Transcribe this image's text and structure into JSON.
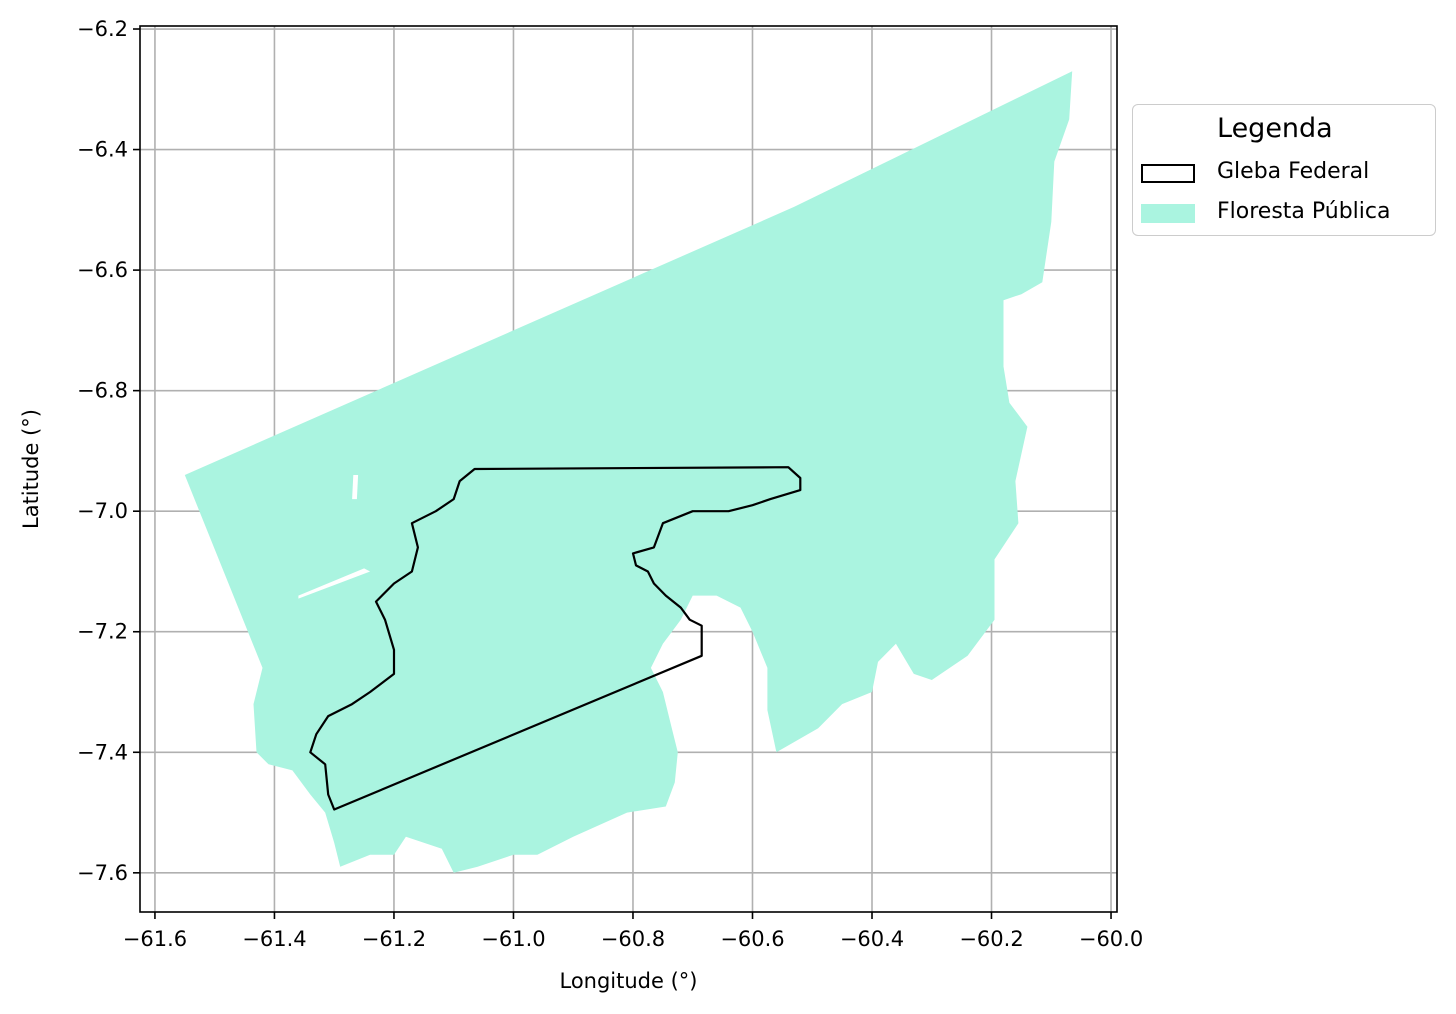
{
  "chart_data": {
    "type": "map",
    "xlabel": "Longitude (°)",
    "ylabel": "Latitude (°)",
    "xlim": [
      -61.625,
      -59.99
    ],
    "ylim": [
      -7.665,
      -6.195
    ],
    "xticks": [
      "−61.6",
      "−61.4",
      "−61.2",
      "−61.0",
      "−60.8",
      "−60.6",
      "−60.4",
      "−60.2",
      "−60.0"
    ],
    "xtick_values": [
      -61.6,
      -61.4,
      -61.2,
      -61.0,
      -60.8,
      -60.6,
      -60.4,
      -60.2,
      -60.0
    ],
    "yticks": [
      "−6.2",
      "−6.4",
      "−6.6",
      "−6.8",
      "−7.0",
      "−7.2",
      "−7.4",
      "−7.6"
    ],
    "ytick_values": [
      -6.2,
      -6.4,
      -6.6,
      -6.8,
      -7.0,
      -7.2,
      -7.4,
      -7.6
    ],
    "grid": true,
    "legend_position": "outside-right-top",
    "legend": {
      "title": "Legenda",
      "entries": [
        {
          "label": "Gleba Federal",
          "style": "outline",
          "color": "#000000"
        },
        {
          "label": "Floresta Pública",
          "style": "fill",
          "color": "#aaf4e0"
        }
      ]
    },
    "floresta_publica": [
      [
        -61.55,
        -6.94
      ],
      [
        -60.53,
        -6.495
      ],
      [
        -60.065,
        -6.27
      ],
      [
        -60.07,
        -6.35
      ],
      [
        -60.095,
        -6.42
      ],
      [
        -60.1,
        -6.52
      ],
      [
        -60.115,
        -6.62
      ],
      [
        -60.15,
        -6.64
      ],
      [
        -60.18,
        -6.65
      ],
      [
        -60.18,
        -6.76
      ],
      [
        -60.17,
        -6.82
      ],
      [
        -60.14,
        -6.86
      ],
      [
        -60.16,
        -6.95
      ],
      [
        -60.155,
        -7.02
      ],
      [
        -60.195,
        -7.08
      ],
      [
        -60.195,
        -7.18
      ],
      [
        -60.24,
        -7.24
      ],
      [
        -60.3,
        -7.28
      ],
      [
        -60.33,
        -7.27
      ],
      [
        -60.36,
        -7.22
      ],
      [
        -60.39,
        -7.25
      ],
      [
        -60.4,
        -7.3
      ],
      [
        -60.45,
        -7.32
      ],
      [
        -60.49,
        -7.36
      ],
      [
        -60.56,
        -7.4
      ],
      [
        -60.575,
        -7.33
      ],
      [
        -60.575,
        -7.26
      ],
      [
        -60.6,
        -7.2
      ],
      [
        -60.62,
        -7.16
      ],
      [
        -60.66,
        -7.14
      ],
      [
        -60.7,
        -7.14
      ],
      [
        -60.72,
        -7.18
      ],
      [
        -60.75,
        -7.22
      ],
      [
        -60.77,
        -7.26
      ],
      [
        -60.75,
        -7.3
      ],
      [
        -60.735,
        -7.36
      ],
      [
        -60.725,
        -7.4
      ],
      [
        -60.73,
        -7.45
      ],
      [
        -60.745,
        -7.49
      ],
      [
        -60.81,
        -7.5
      ],
      [
        -60.9,
        -7.54
      ],
      [
        -60.96,
        -7.57
      ],
      [
        -61.0,
        -7.57
      ],
      [
        -61.06,
        -7.59
      ],
      [
        -61.1,
        -7.6
      ],
      [
        -61.12,
        -7.56
      ],
      [
        -61.18,
        -7.54
      ],
      [
        -61.2,
        -7.57
      ],
      [
        -61.24,
        -7.57
      ],
      [
        -61.29,
        -7.59
      ],
      [
        -61.3,
        -7.55
      ],
      [
        -61.315,
        -7.5
      ],
      [
        -61.34,
        -7.47
      ],
      [
        -61.37,
        -7.43
      ],
      [
        -61.41,
        -7.42
      ],
      [
        -61.43,
        -7.4
      ],
      [
        -61.435,
        -7.32
      ],
      [
        -61.42,
        -7.26
      ]
    ],
    "gleba_federal": [
      [
        -61.065,
        -6.93
      ],
      [
        -60.54,
        -6.927
      ],
      [
        -60.52,
        -6.945
      ],
      [
        -60.52,
        -6.965
      ],
      [
        -60.57,
        -6.98
      ],
      [
        -60.6,
        -6.99
      ],
      [
        -60.64,
        -7.0
      ],
      [
        -60.7,
        -7.0
      ],
      [
        -60.75,
        -7.02
      ],
      [
        -60.765,
        -7.06
      ],
      [
        -60.8,
        -7.07
      ],
      [
        -60.795,
        -7.09
      ],
      [
        -60.775,
        -7.1
      ],
      [
        -60.765,
        -7.12
      ],
      [
        -60.745,
        -7.14
      ],
      [
        -60.72,
        -7.16
      ],
      [
        -60.705,
        -7.18
      ],
      [
        -60.685,
        -7.19
      ],
      [
        -60.685,
        -7.24
      ],
      [
        -61.3,
        -7.495
      ],
      [
        -61.31,
        -7.47
      ],
      [
        -61.315,
        -7.42
      ],
      [
        -61.34,
        -7.4
      ],
      [
        -61.33,
        -7.37
      ],
      [
        -61.31,
        -7.34
      ],
      [
        -61.27,
        -7.32
      ],
      [
        -61.24,
        -7.3
      ],
      [
        -61.2,
        -7.27
      ],
      [
        -61.2,
        -7.23
      ],
      [
        -61.215,
        -7.18
      ],
      [
        -61.23,
        -7.15
      ],
      [
        -61.2,
        -7.12
      ],
      [
        -61.17,
        -7.1
      ],
      [
        -61.16,
        -7.06
      ],
      [
        -61.17,
        -7.02
      ],
      [
        -61.13,
        -7.0
      ],
      [
        -61.1,
        -6.98
      ],
      [
        -61.09,
        -6.95
      ]
    ],
    "gaps": [
      [
        [
          -61.25,
          -7.095
        ],
        [
          -61.25,
          -7.095
        ],
        [
          -61.36,
          -7.14
        ],
        [
          -61.36,
          -7.145
        ],
        [
          -61.24,
          -7.1
        ]
      ],
      [
        [
          -61.27,
          -6.98
        ],
        [
          -61.27,
          -6.98
        ],
        [
          -61.268,
          -6.94
        ],
        [
          -61.26,
          -6.94
        ],
        [
          -61.262,
          -6.98
        ]
      ]
    ]
  }
}
